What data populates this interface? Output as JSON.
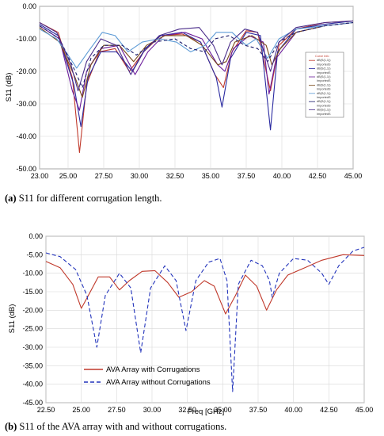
{
  "chart_data": [
    {
      "type": "line",
      "panel": "a",
      "ylabel": "S11 (dB)",
      "xlabel": "",
      "xlim": [
        23.0,
        45.0
      ],
      "ylim": [
        -50.0,
        0.0
      ],
      "xticks": [
        "23.00",
        "25.00",
        "27.50",
        "30.00",
        "32.50",
        "35.00",
        "37.50",
        "40.00",
        "42.50",
        "45.00"
      ],
      "xtick_values": [
        23,
        25,
        27.5,
        30,
        32.5,
        35,
        37.5,
        40,
        42.5,
        45
      ],
      "yticks": [
        "0.00",
        "-10.00",
        "-20.00",
        "-30.00",
        "-40.00",
        "-50.00"
      ],
      "ytick_values": [
        0,
        -10,
        -20,
        -30,
        -40,
        -50
      ],
      "grid": true,
      "legend_position": "right",
      "legend": [
        "Curve Info",
        "dB(S(1,1))",
        "ImportedS",
        "dB(S(1,1))",
        "ImportedS",
        "dB(S(1,1))",
        "ImportedS",
        "dB(S(1,1))",
        "ImportedS",
        "dB(S(1,1))",
        "ImportedS",
        "dB(S(1,1))",
        "ImportedS",
        "dB(S(1,1))",
        "ImportedS"
      ],
      "series": [
        {
          "color": "#c0392b",
          "dash": "",
          "points": [
            [
              23,
              -5
            ],
            [
              24.3,
              -8
            ],
            [
              25.3,
              -22
            ],
            [
              25.8,
              -45
            ],
            [
              26.3,
              -24
            ],
            [
              27.2,
              -14
            ],
            [
              28.3,
              -13
            ],
            [
              29.3,
              -20
            ],
            [
              30.3,
              -14
            ],
            [
              31.5,
              -9
            ],
            [
              33,
              -8.5
            ],
            [
              34.3,
              -11
            ],
            [
              35.3,
              -21
            ],
            [
              35.9,
              -25
            ],
            [
              36.5,
              -14
            ],
            [
              37.5,
              -7.5
            ],
            [
              38.3,
              -8
            ],
            [
              39.2,
              -26
            ],
            [
              39.8,
              -12
            ],
            [
              41,
              -7
            ],
            [
              43,
              -5
            ],
            [
              45,
              -4.5
            ]
          ]
        },
        {
          "color": "#2a2aa0",
          "dash": "",
          "points": [
            [
              23,
              -5.5
            ],
            [
              24.3,
              -9
            ],
            [
              25.4,
              -24
            ],
            [
              25.9,
              -37
            ],
            [
              26.4,
              -22
            ],
            [
              27.3,
              -14
            ],
            [
              28.4,
              -14
            ],
            [
              29.5,
              -20
            ],
            [
              30.4,
              -13
            ],
            [
              31.5,
              -9
            ],
            [
              33,
              -8
            ],
            [
              34.3,
              -11
            ],
            [
              35.4,
              -22
            ],
            [
              35.8,
              -31
            ],
            [
              36.4,
              -16
            ],
            [
              37.5,
              -8
            ],
            [
              38.5,
              -9
            ],
            [
              39.2,
              -38
            ],
            [
              39.7,
              -14
            ],
            [
              41,
              -7
            ],
            [
              43,
              -5.5
            ],
            [
              45,
              -4.5
            ]
          ]
        },
        {
          "color": "#6a1b9a",
          "dash": "",
          "points": [
            [
              23,
              -6
            ],
            [
              24.4,
              -10
            ],
            [
              25.3,
              -26
            ],
            [
              25.8,
              -32
            ],
            [
              26.3,
              -20
            ],
            [
              27.3,
              -13
            ],
            [
              28.6,
              -12
            ],
            [
              29.7,
              -21
            ],
            [
              30.6,
              -14
            ],
            [
              31.7,
              -9
            ],
            [
              33.2,
              -8
            ],
            [
              34.4,
              -10
            ],
            [
              35.5,
              -18
            ],
            [
              36,
              -20
            ],
            [
              36.6,
              -13
            ],
            [
              37.7,
              -9
            ],
            [
              38.7,
              -11
            ],
            [
              39.1,
              -27
            ],
            [
              39.6,
              -16
            ],
            [
              41,
              -8
            ],
            [
              43,
              -6
            ],
            [
              45,
              -5
            ]
          ]
        },
        {
          "color": "#7a4a1a",
          "dash": "",
          "points": [
            [
              23,
              -6.5
            ],
            [
              24.4,
              -11
            ],
            [
              25.5,
              -22
            ],
            [
              26,
              -28
            ],
            [
              26.6,
              -18
            ],
            [
              27.5,
              -12
            ],
            [
              28.6,
              -12
            ],
            [
              29.6,
              -17
            ],
            [
              30.5,
              -12
            ],
            [
              31.8,
              -9
            ],
            [
              33.3,
              -9
            ],
            [
              34.4,
              -12
            ],
            [
              35.5,
              -18
            ],
            [
              36.1,
              -17
            ],
            [
              36.7,
              -11
            ],
            [
              37.9,
              -9
            ],
            [
              38.9,
              -12
            ],
            [
              39.3,
              -18
            ],
            [
              39.9,
              -13
            ],
            [
              41,
              -8
            ],
            [
              43,
              -6
            ],
            [
              45,
              -5
            ]
          ]
        },
        {
          "color": "#5d9bd6",
          "dash": "",
          "points": [
            [
              23,
              -7
            ],
            [
              24.2,
              -10
            ],
            [
              25,
              -15
            ],
            [
              25.6,
              -19
            ],
            [
              26.4,
              -14
            ],
            [
              27.4,
              -8
            ],
            [
              28.3,
              -9
            ],
            [
              29.2,
              -14
            ],
            [
              30.2,
              -11
            ],
            [
              31.4,
              -10
            ],
            [
              32.6,
              -11
            ],
            [
              33.6,
              -14
            ],
            [
              34.6,
              -12
            ],
            [
              35.4,
              -8
            ],
            [
              36.5,
              -8
            ],
            [
              37.5,
              -12
            ],
            [
              38.2,
              -10
            ],
            [
              39,
              -16
            ],
            [
              39.8,
              -10
            ],
            [
              41,
              -7
            ],
            [
              43,
              -6
            ],
            [
              45,
              -5
            ]
          ]
        },
        {
          "color": "#1b1b6b",
          "dash": "4,3",
          "points": [
            [
              23,
              -6
            ],
            [
              24.4,
              -10
            ],
            [
              25.5,
              -20
            ],
            [
              26,
              -25
            ],
            [
              26.6,
              -16
            ],
            [
              27.5,
              -12
            ],
            [
              28.8,
              -12
            ],
            [
              29.8,
              -15
            ],
            [
              31,
              -11
            ],
            [
              32.5,
              -10
            ],
            [
              33.6,
              -13
            ],
            [
              34.6,
              -14
            ],
            [
              35.3,
              -10
            ],
            [
              36.3,
              -9
            ],
            [
              37.4,
              -12
            ],
            [
              38.3,
              -13
            ],
            [
              39,
              -17
            ],
            [
              39.8,
              -11
            ],
            [
              41,
              -8
            ],
            [
              43,
              -6
            ],
            [
              45,
              -5
            ]
          ]
        },
        {
          "color": "#4a2c8a",
          "dash": "",
          "points": [
            [
              23,
              -5
            ],
            [
              24.2,
              -8
            ],
            [
              25.2,
              -18
            ],
            [
              25.7,
              -26
            ],
            [
              26.3,
              -17
            ],
            [
              27.3,
              -10
            ],
            [
              28.4,
              -12
            ],
            [
              29.4,
              -21
            ],
            [
              30.3,
              -14
            ],
            [
              31.4,
              -9
            ],
            [
              32.8,
              -7
            ],
            [
              34.2,
              -6.5
            ],
            [
              35.2,
              -12
            ],
            [
              35.8,
              -18
            ],
            [
              36.4,
              -11
            ],
            [
              37.4,
              -7
            ],
            [
              38.3,
              -8
            ],
            [
              39.2,
              -20
            ],
            [
              39.8,
              -11
            ],
            [
              41,
              -6.5
            ],
            [
              43,
              -5
            ],
            [
              45,
              -4.5
            ]
          ]
        }
      ]
    },
    {
      "type": "line",
      "panel": "b",
      "ylabel": "S11 (dB)",
      "xlabel": "Freq [GHz]",
      "xlim": [
        22.5,
        45.0
      ],
      "ylim": [
        -45.0,
        0.0
      ],
      "xticks": [
        "22.50",
        "25.00",
        "27.50",
        "30.00",
        "32.50",
        "35.00",
        "37.50",
        "40.00",
        "42.50",
        "45.00"
      ],
      "xtick_values": [
        22.5,
        25,
        27.5,
        30,
        32.5,
        35,
        37.5,
        40,
        42.5,
        45
      ],
      "yticks": [
        "0.00",
        "-5.00",
        "-10.00",
        "-15.00",
        "-20.00",
        "-25.00",
        "-30.00",
        "-35.00",
        "-40.00",
        "-45.00"
      ],
      "ytick_values": [
        0,
        -5,
        -10,
        -15,
        -20,
        -25,
        -30,
        -35,
        -40,
        -45
      ],
      "grid": true,
      "legend_position": "bottom-left",
      "series": [
        {
          "name": "AVA Array with Corrugations",
          "color": "#c0392b",
          "dash": "",
          "points": [
            [
              22.5,
              -6.8
            ],
            [
              23.5,
              -8.5
            ],
            [
              24.4,
              -13
            ],
            [
              25,
              -19.5
            ],
            [
              25.5,
              -16
            ],
            [
              26.2,
              -11
            ],
            [
              27,
              -11
            ],
            [
              27.7,
              -14.5
            ],
            [
              28.4,
              -12
            ],
            [
              29.3,
              -9.5
            ],
            [
              30.2,
              -9.3
            ],
            [
              31.1,
              -12.5
            ],
            [
              31.9,
              -16.5
            ],
            [
              32.8,
              -15
            ],
            [
              33.7,
              -12
            ],
            [
              34.4,
              -13.5
            ],
            [
              35.2,
              -21
            ],
            [
              35.9,
              -16
            ],
            [
              36.6,
              -10.5
            ],
            [
              37.4,
              -13.5
            ],
            [
              38.1,
              -20
            ],
            [
              38.8,
              -14.5
            ],
            [
              39.6,
              -10.5
            ],
            [
              40.8,
              -8.5
            ],
            [
              42,
              -6.5
            ],
            [
              43.5,
              -5
            ],
            [
              45,
              -5.2
            ]
          ]
        },
        {
          "name": "AVA Array without Corrugations",
          "color": "#2233bb",
          "dash": "5,3",
          "points": [
            [
              22.5,
              -4.5
            ],
            [
              23.5,
              -5.5
            ],
            [
              24.6,
              -9
            ],
            [
              25.4,
              -16
            ],
            [
              26.1,
              -30
            ],
            [
              26.7,
              -16
            ],
            [
              27.7,
              -10
            ],
            [
              28.5,
              -14
            ],
            [
              29.2,
              -31.5
            ],
            [
              29.9,
              -14
            ],
            [
              30.9,
              -8
            ],
            [
              31.7,
              -12
            ],
            [
              32.4,
              -25.5
            ],
            [
              33.1,
              -12
            ],
            [
              34,
              -7
            ],
            [
              34.8,
              -6
            ],
            [
              35.3,
              -12
            ],
            [
              35.7,
              -42
            ],
            [
              36.1,
              -13
            ],
            [
              37,
              -6.5
            ],
            [
              37.8,
              -8
            ],
            [
              38.3,
              -12
            ],
            [
              38.5,
              -16.5
            ],
            [
              39,
              -10
            ],
            [
              40,
              -6
            ],
            [
              41,
              -6.5
            ],
            [
              42,
              -10
            ],
            [
              42.5,
              -13
            ],
            [
              43.2,
              -8
            ],
            [
              44.2,
              -4
            ],
            [
              45,
              -3
            ]
          ]
        }
      ]
    }
  ],
  "captions": {
    "a_label": "(a)",
    "a_text": " S11 for different corrugation length.",
    "b_label": "(b)",
    "b_text": " S11 of the AVA array with and without corrugations."
  }
}
